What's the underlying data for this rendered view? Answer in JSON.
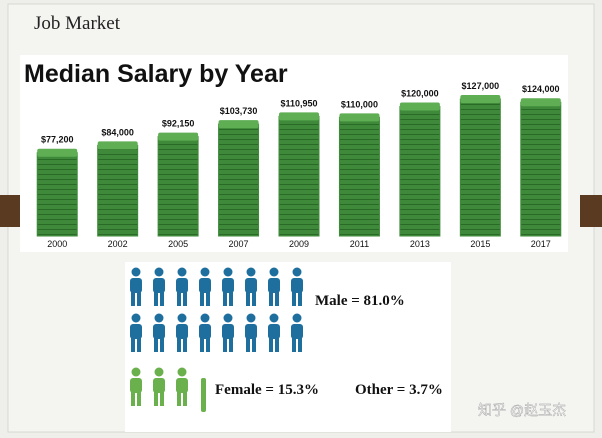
{
  "header": "Job Market",
  "chart_data": {
    "type": "bar",
    "title": "Median Salary by Year",
    "categories": [
      "2000",
      "2002",
      "2005",
      "2007",
      "2009",
      "2011",
      "2013",
      "2015",
      "2017"
    ],
    "values": [
      77200,
      84000,
      92150,
      103730,
      110950,
      110000,
      120000,
      127000,
      124000
    ],
    "value_labels": [
      "$77,200",
      "$84,000",
      "$92,150",
      "$103,730",
      "$110,950",
      "$110,000",
      "$120,000",
      "$127,000",
      "$124,000"
    ],
    "color": "#3f8a3a"
  },
  "gender": {
    "male": "Male = 81.0%",
    "female": "Female = 15.3%",
    "other": "Other = 3.7%"
  },
  "watermark": "知乎 @赵玉杰"
}
